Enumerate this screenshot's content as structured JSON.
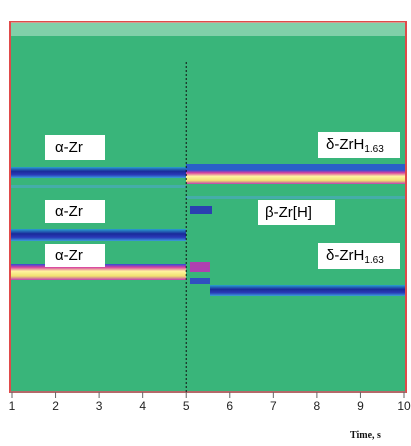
{
  "chart_data": {
    "type": "heatmap",
    "xlabel": "Time, s",
    "xlim": [
      1,
      10
    ],
    "xticks": [
      1,
      2,
      3,
      4,
      5,
      6,
      7,
      8,
      9,
      10
    ],
    "vline": 5,
    "annotations": [
      {
        "text": "α-Zr"
      },
      {
        "text": "α-Zr"
      },
      {
        "text": "α-Zr"
      },
      {
        "text": "δ-ZrH",
        "sub": "1.63"
      },
      {
        "text": "β-Zr[H]"
      },
      {
        "text": "δ-ZrH",
        "sub": "1.63"
      }
    ]
  }
}
